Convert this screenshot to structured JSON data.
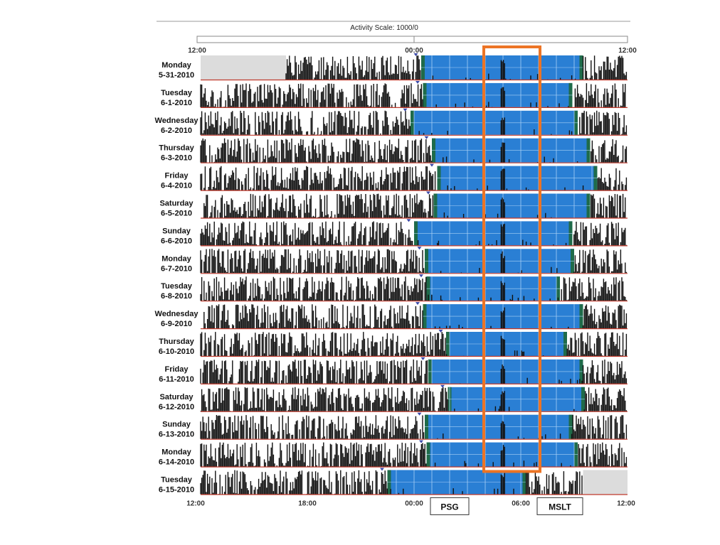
{
  "chart_data": {
    "type": "actogram",
    "title": "Activity Scale: 1000/0",
    "x_ticks_top": [
      "12:00",
      "00:00",
      "12:00"
    ],
    "x_ticks_bottom": [
      "12:00",
      "18:00",
      "00:00",
      "06:00",
      "12:00"
    ],
    "x_range_hours": [
      12,
      36
    ],
    "days": [
      {
        "weekday": "Monday",
        "date": "5-31-2010",
        "rest_start": 24.4,
        "rest_end": 33.5,
        "no_data": [
          [
            12,
            16.8
          ]
        ]
      },
      {
        "weekday": "Tuesday",
        "date": "6-1-2010",
        "rest_start": 24.5,
        "rest_end": 32.9,
        "no_data": []
      },
      {
        "weekday": "Wednesday",
        "date": "6-2-2010",
        "rest_start": 23.8,
        "rest_end": 33.2,
        "no_data": []
      },
      {
        "weekday": "Thursday",
        "date": "6-3-2010",
        "rest_start": 25.0,
        "rest_end": 33.9,
        "no_data": []
      },
      {
        "weekday": "Friday",
        "date": "6-4-2010",
        "rest_start": 25.3,
        "rest_end": 34.3,
        "no_data": []
      },
      {
        "weekday": "Saturday",
        "date": "6-5-2010",
        "rest_start": 25.1,
        "rest_end": 33.9,
        "no_data": []
      },
      {
        "weekday": "Sunday",
        "date": "6-6-2010",
        "rest_start": 24.0,
        "rest_end": 32.9,
        "no_data": []
      },
      {
        "weekday": "Monday",
        "date": "6-7-2010",
        "rest_start": 24.6,
        "rest_end": 33.0,
        "no_data": []
      },
      {
        "weekday": "Tuesday",
        "date": "6-8-2010",
        "rest_start": 24.7,
        "rest_end": 32.2,
        "no_data": []
      },
      {
        "weekday": "Wednesday",
        "date": "6-9-2010",
        "rest_start": 24.5,
        "rest_end": 33.5,
        "no_data": []
      },
      {
        "weekday": "Thursday",
        "date": "6-10-2010",
        "rest_start": 25.8,
        "rest_end": 32.6,
        "no_data": []
      },
      {
        "weekday": "Friday",
        "date": "6-11-2010",
        "rest_start": 24.8,
        "rest_end": 33.5,
        "no_data": []
      },
      {
        "weekday": "Saturday",
        "date": "6-12-2010",
        "rest_start": 25.9,
        "rest_end": 33.6,
        "no_data": []
      },
      {
        "weekday": "Sunday",
        "date": "6-13-2010",
        "rest_start": 24.6,
        "rest_end": 32.9,
        "no_data": []
      },
      {
        "weekday": "Monday",
        "date": "6-14-2010",
        "rest_start": 24.7,
        "rest_end": 33.2,
        "no_data": []
      },
      {
        "weekday": "Tuesday",
        "date": "6-15-2010",
        "rest_start": 22.5,
        "rest_end": 30.3,
        "no_data": [
          [
            33.5,
            36
          ]
        ]
      }
    ],
    "highlight_window_hours": [
      28.0,
      31.0
    ],
    "highlight_color": "#ec7425",
    "rest_color": "#2a7fd4",
    "activity_color": "#111111",
    "labels": [
      {
        "text": "PSG",
        "x_hours": 26.0
      },
      {
        "text": "MSLT",
        "x_hours": 32.2
      }
    ]
  }
}
